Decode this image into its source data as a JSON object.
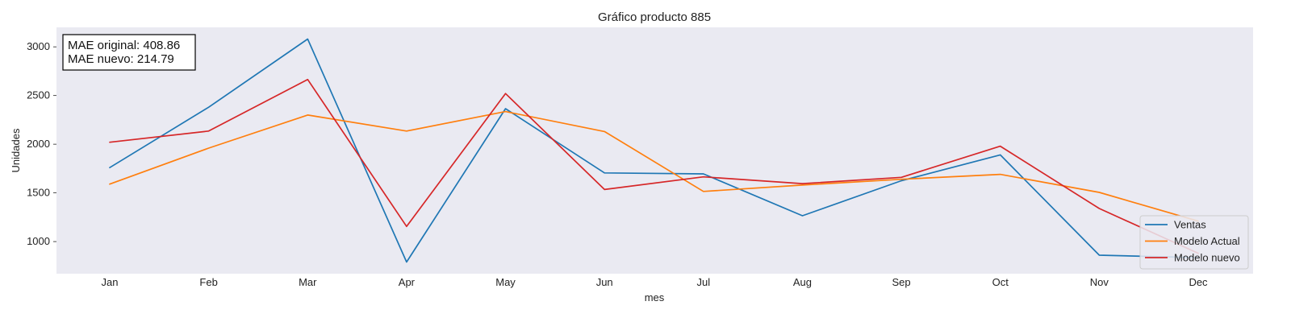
{
  "chart_data": {
    "type": "line",
    "title": "Gráfico producto 885",
    "xlabel": "mes",
    "ylabel": "Unidades",
    "categories": [
      "Jan",
      "Feb",
      "Mar",
      "Apr",
      "May",
      "Jun",
      "Jul",
      "Aug",
      "Sep",
      "Oct",
      "Nov",
      "Dec"
    ],
    "ylim": [
      670,
      3200
    ],
    "yticks": [
      1000,
      1500,
      2000,
      2500,
      3000
    ],
    "grid": false,
    "legend_position": "lower right",
    "background": "#eaeaf2",
    "series": [
      {
        "name": "Ventas",
        "color": "#1f77b4",
        "values": [
          1760,
          2380,
          3080,
          790,
          2365,
          1705,
          1695,
          1265,
          1625,
          1890,
          860,
          835
        ]
      },
      {
        "name": "Modelo Actual",
        "color": "#ff7f0e",
        "values": [
          1590,
          1960,
          2300,
          2135,
          2335,
          2130,
          1515,
          1580,
          1640,
          1690,
          1505,
          1210
        ]
      },
      {
        "name": "Modelo nuevo",
        "color": "#d62728",
        "values": [
          2020,
          2135,
          2665,
          1155,
          2520,
          1535,
          1665,
          1595,
          1660,
          1980,
          1340,
          880
        ]
      }
    ],
    "annotation": {
      "lines": [
        "MAE original: 408.86",
        "MAE nuevo: 214.79"
      ]
    }
  }
}
